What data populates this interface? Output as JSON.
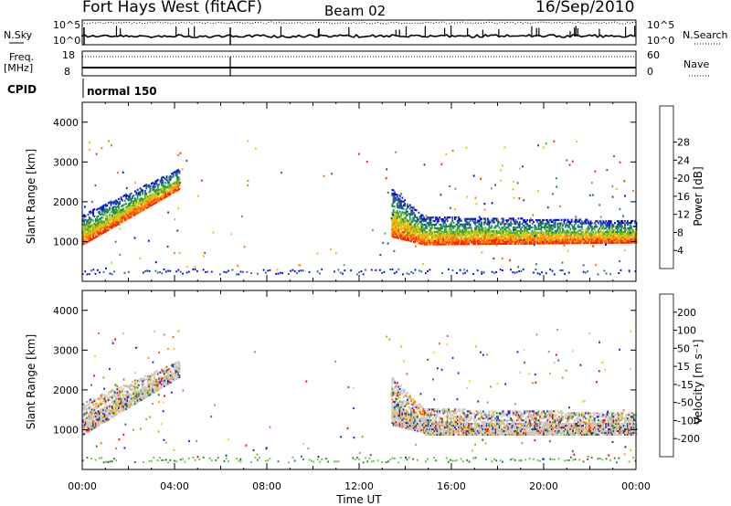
{
  "header": {
    "station": "Fort Hays West (fitACF)",
    "beam": "Beam 02",
    "date": "16/Sep/2010"
  },
  "noise_panel": {
    "left_label": "N.Sky",
    "right_label": "N.Search",
    "left_ticks": [
      "10^5",
      "10^0"
    ],
    "right_ticks": [
      "10^5",
      "10^0"
    ]
  },
  "freq_panel": {
    "left_label_1": "Freq.",
    "left_label_2": "[MHz]",
    "right_label": "Nave",
    "left_ticks": [
      "18",
      "8"
    ],
    "right_ticks": [
      "60",
      "0"
    ]
  },
  "cpid": {
    "label": "CPID",
    "program": "normal 150"
  },
  "colors": {
    "power_scale": [
      "#0000ff",
      "#2040a0",
      "#207070",
      "#209050",
      "#50b030",
      "#c0d020",
      "#ffb000",
      "#ff7000",
      "#ff2000"
    ],
    "velocity_scale": [
      "#2020ff",
      "#0040a0",
      "#208040",
      "#70c030",
      "#c8c8c8",
      "#ffd000",
      "#ffa000",
      "#ff6000",
      "#ff0000"
    ]
  },
  "chart_data": [
    {
      "type": "heatmap",
      "panel": "power",
      "ylabel": "Slant Range [km]",
      "yticks": [
        "1000",
        "2000",
        "3000",
        "4000"
      ],
      "ylim": [
        0,
        4500
      ],
      "xlim": [
        0,
        24
      ],
      "colorbar_label": "Power [dB]",
      "colorbar_ticks": [
        "4",
        "8",
        "12",
        "16",
        "20",
        "24",
        "28"
      ],
      "scatter_bands": [
        {
          "t0": 0.0,
          "t1": 4.2,
          "r0_start": 900,
          "r0_end": 2300,
          "r1_start": 1650,
          "r1_end": 2800
        },
        {
          "t0": 13.4,
          "t1": 14.8,
          "r0_start": 1100,
          "r0_end": 900,
          "r1_start": 2300,
          "r1_end": 1600
        },
        {
          "t0": 14.8,
          "t1": 24.0,
          "r0_start": 900,
          "r0_end": 950,
          "r1_start": 1600,
          "r1_end": 1500
        }
      ]
    },
    {
      "type": "heatmap",
      "panel": "velocity",
      "ylabel": "Slant Range [km]",
      "yticks": [
        "1000",
        "2000",
        "3000",
        "4000"
      ],
      "ylim": [
        0,
        4500
      ],
      "xlim": [
        0,
        24
      ],
      "xlabel": "Time UT",
      "xticks": [
        "00:00",
        "04:00",
        "08:00",
        "12:00",
        "16:00",
        "20:00",
        "00:00"
      ],
      "colorbar_label": "Velocity [m s⁻¹]",
      "colorbar_ticks": [
        "200",
        "100",
        "50",
        "15",
        "-15",
        "-50",
        "-100",
        "-200"
      ],
      "scatter_bands": [
        {
          "t0": 0.0,
          "t1": 4.2,
          "r0_start": 850,
          "r0_end": 2300,
          "r1_start": 1650,
          "r1_end": 2700
        },
        {
          "t0": 13.4,
          "t1": 14.8,
          "r0_start": 1100,
          "r0_end": 900,
          "r1_start": 2300,
          "r1_end": 1500
        },
        {
          "t0": 14.8,
          "t1": 24.0,
          "r0_start": 850,
          "r0_end": 850,
          "r1_start": 1500,
          "r1_end": 1400
        }
      ]
    }
  ]
}
